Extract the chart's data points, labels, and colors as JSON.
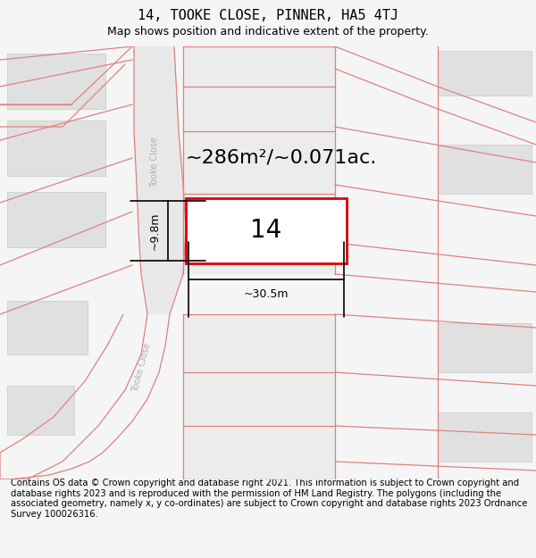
{
  "title": "14, TOOKE CLOSE, PINNER, HA5 4TJ",
  "subtitle": "Map shows position and indicative extent of the property.",
  "footer": "Contains OS data © Crown copyright and database right 2021. This information is subject to Crown copyright and database rights 2023 and is reproduced with the permission of HM Land Registry. The polygons (including the associated geometry, namely x, y co-ordinates) are subject to Crown copyright and database rights 2023 Ordnance Survey 100026316.",
  "area_label": "~286m²/~0.071ac.",
  "width_label": "~30.5m",
  "height_label": "~9.8m",
  "property_number": "14",
  "bg_color": "#f5f5f5",
  "map_bg": "#ffffff",
  "road_fill": "#e8e8e8",
  "road_line_color": "#e08080",
  "building_color": "#e0e0e0",
  "building_edge": "#c8c8c8",
  "property_rect_color": "#dd0000",
  "street_label_color": "#b0b0b0",
  "title_fontsize": 11,
  "subtitle_fontsize": 9,
  "footer_fontsize": 7.2,
  "area_fontsize": 16,
  "dim_fontsize": 9,
  "num_fontsize": 20,
  "title_font": "DejaVu Sans Mono",
  "map_xlim": [
    0,
    600
  ],
  "map_ylim": [
    0,
    490
  ]
}
